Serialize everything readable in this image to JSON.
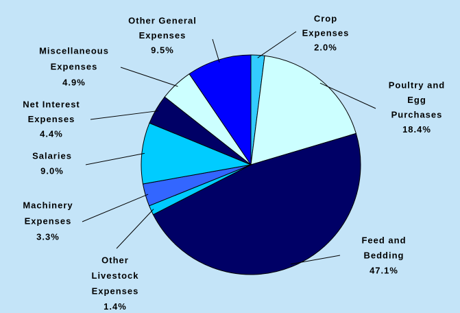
{
  "chart_data": {
    "type": "pie",
    "categories": [
      [
        "Crop",
        "Expenses"
      ],
      [
        "Poultry and",
        "Egg",
        "Purchases"
      ],
      [
        "Feed and",
        "Bedding"
      ],
      [
        "Other",
        "Livestock",
        "Expenses"
      ],
      [
        "Machinery",
        "Expenses"
      ],
      [
        "Salaries"
      ],
      [
        "Net Interest",
        "Expenses"
      ],
      [
        "Miscellaneous",
        "Expenses"
      ],
      [
        "Other General",
        "Expenses"
      ]
    ],
    "values": [
      2.0,
      18.4,
      47.1,
      1.4,
      3.3,
      9.0,
      4.4,
      4.9,
      9.5
    ],
    "value_labels": [
      "2.0%",
      "18.4%",
      "47.1%",
      "1.4%",
      "3.3%",
      "9.0%",
      "4.4%",
      "4.9%",
      "9.5%"
    ],
    "colors": [
      "#33ccff",
      "#ccffff",
      "#000066",
      "#00ccff",
      "#3366ff",
      "#00ccff",
      "#000066",
      "#ccffff",
      "#0000ff"
    ]
  }
}
